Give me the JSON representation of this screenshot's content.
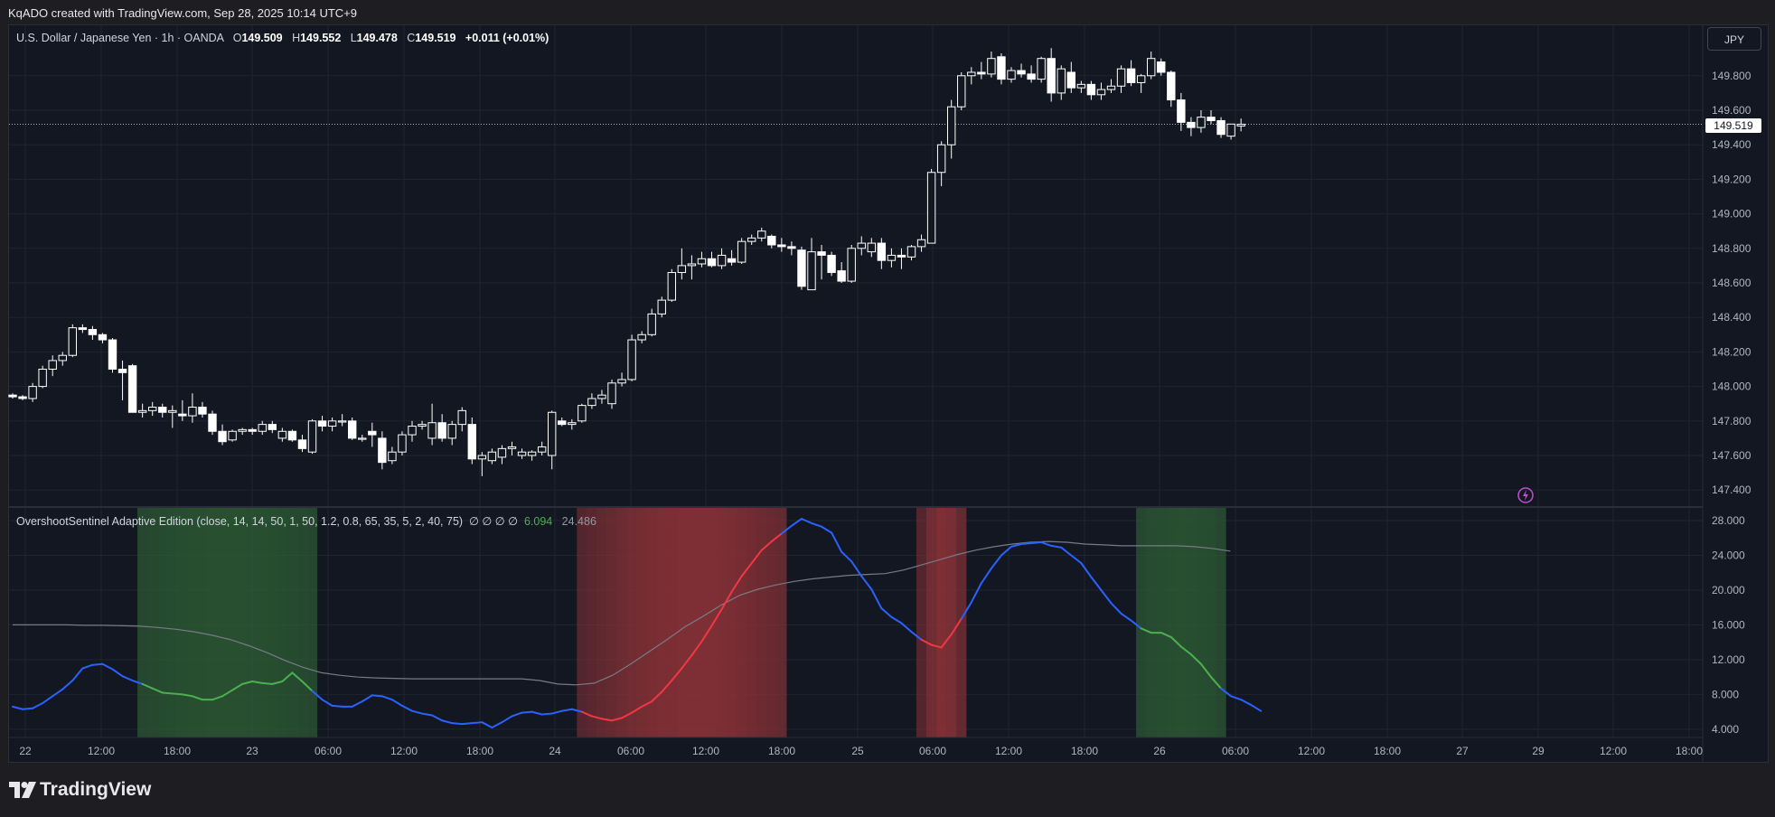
{
  "header": {
    "attribution": "KqADO created with TradingView.com, Sep 28, 2025 10:14 UTC+9"
  },
  "legend": {
    "symbol": "U.S. Dollar / Japanese Yen · 1h · OANDA",
    "o_label": "O",
    "o_value": "149.509",
    "h_label": "H",
    "h_value": "149.552",
    "l_label": "L",
    "l_value": "149.478",
    "c_label": "C",
    "c_value": "149.519",
    "change": "+0.011 (+0.01%)"
  },
  "indicator": {
    "name": "OvershootSentinel Adaptive Edition (close, 14, 14, 50, 1, 50, 1.2, 0.8, 65, 35, 5, 2, 40, 75)",
    "symbols": "∅ ∅ ∅ ∅",
    "value1": "6.094",
    "value2": "24.486"
  },
  "currency_button": "JPY",
  "last_price": "149.519",
  "footer": {
    "logo_text": "TradingView"
  },
  "colors": {
    "background": "#131722",
    "grid": "#1f2430",
    "candle": "#ffffff",
    "line_low": "#2962ff",
    "line_oversold": "#4caf50",
    "line_overbought": "#f23645",
    "signal_line": "#787b86",
    "zone_green": "#2e5e35",
    "zone_red": "#8b3237"
  },
  "chart_data": [
    {
      "type": "candlestick",
      "title": "U.S. Dollar / Japanese Yen · 1h · OANDA",
      "y_ticks": [
        "149.800",
        "149.600",
        "149.400",
        "149.200",
        "149.000",
        "148.800",
        "148.600",
        "148.400",
        "148.200",
        "148.000",
        "147.800",
        "147.600",
        "147.400"
      ],
      "ylim": [
        147.36,
        149.98
      ],
      "x_labels": [
        "22",
        "12:00",
        "18:00",
        "23",
        "06:00",
        "12:00",
        "18:00",
        "24",
        "06:00",
        "12:00",
        "18:00",
        "25",
        "06:00",
        "12:00",
        "18:00",
        "26",
        "06:00",
        "12:00",
        "18:00",
        "27",
        "29",
        "12:00",
        "18:00"
      ],
      "candles": [
        [
          147.95,
          147.96,
          147.93,
          147.94
        ],
        [
          147.94,
          147.95,
          147.92,
          147.93
        ],
        [
          147.93,
          148.02,
          147.91,
          148.0
        ],
        [
          148.0,
          148.12,
          147.99,
          148.1
        ],
        [
          148.1,
          148.18,
          148.06,
          148.15
        ],
        [
          148.15,
          148.2,
          148.12,
          148.18
        ],
        [
          148.18,
          148.36,
          148.17,
          148.34
        ],
        [
          148.34,
          148.36,
          148.31,
          148.33
        ],
        [
          148.33,
          148.35,
          148.27,
          148.3
        ],
        [
          148.3,
          148.31,
          148.25,
          148.27
        ],
        [
          148.27,
          148.28,
          148.08,
          148.1
        ],
        [
          148.1,
          148.15,
          147.92,
          148.08
        ],
        [
          148.12,
          148.13,
          147.86,
          147.85
        ],
        [
          147.85,
          147.9,
          147.82,
          147.86
        ],
        [
          147.86,
          147.91,
          147.83,
          147.88
        ],
        [
          147.88,
          147.9,
          147.82,
          147.85
        ],
        [
          147.85,
          147.89,
          147.76,
          147.86
        ],
        [
          147.84,
          147.92,
          147.8,
          147.83
        ],
        [
          147.83,
          147.96,
          147.79,
          147.88
        ],
        [
          147.88,
          147.91,
          147.82,
          147.84
        ],
        [
          147.84,
          147.86,
          147.72,
          147.74
        ],
        [
          147.74,
          147.78,
          147.66,
          147.68
        ],
        [
          147.69,
          147.75,
          147.68,
          147.74
        ],
        [
          147.74,
          147.76,
          147.72,
          147.75
        ],
        [
          147.75,
          147.76,
          147.72,
          147.74
        ],
        [
          147.74,
          147.8,
          147.72,
          147.78
        ],
        [
          147.78,
          147.8,
          147.73,
          147.75
        ],
        [
          147.7,
          147.76,
          147.68,
          147.74
        ],
        [
          147.74,
          147.75,
          147.68,
          147.69
        ],
        [
          147.69,
          147.72,
          147.62,
          147.64
        ],
        [
          147.62,
          147.81,
          147.61,
          147.8
        ],
        [
          147.8,
          147.83,
          147.74,
          147.77
        ],
        [
          147.77,
          147.82,
          147.74,
          147.8
        ],
        [
          147.8,
          147.84,
          147.77,
          147.8
        ],
        [
          147.8,
          147.82,
          147.69,
          147.7
        ],
        [
          147.7,
          147.72,
          147.68,
          147.7
        ],
        [
          147.74,
          147.79,
          147.65,
          147.72
        ],
        [
          147.7,
          147.74,
          147.52,
          147.56
        ],
        [
          147.57,
          147.65,
          147.55,
          147.62
        ],
        [
          147.62,
          147.74,
          147.6,
          147.72
        ],
        [
          147.72,
          147.8,
          147.68,
          147.77
        ],
        [
          147.77,
          147.8,
          147.75,
          147.78
        ],
        [
          147.7,
          147.9,
          147.66,
          147.79
        ],
        [
          147.79,
          147.84,
          147.68,
          147.7
        ],
        [
          147.7,
          147.8,
          147.66,
          147.78
        ],
        [
          147.78,
          147.88,
          147.74,
          147.86
        ],
        [
          147.78,
          147.82,
          147.55,
          147.58
        ],
        [
          147.58,
          147.62,
          147.48,
          147.6
        ],
        [
          147.57,
          147.64,
          147.55,
          147.62
        ],
        [
          147.59,
          147.66,
          147.55,
          147.64
        ],
        [
          147.64,
          147.68,
          147.6,
          147.65
        ],
        [
          147.6,
          147.64,
          147.58,
          147.62
        ],
        [
          147.6,
          147.63,
          147.57,
          147.62
        ],
        [
          147.62,
          147.68,
          147.6,
          147.65
        ],
        [
          147.6,
          147.86,
          147.52,
          147.85
        ],
        [
          147.8,
          147.82,
          147.77,
          147.78
        ],
        [
          147.78,
          147.81,
          147.75,
          147.79
        ],
        [
          147.8,
          147.9,
          147.79,
          147.89
        ],
        [
          147.89,
          147.96,
          147.87,
          147.93
        ],
        [
          147.93,
          147.98,
          147.9,
          147.95
        ],
        [
          147.9,
          148.04,
          147.87,
          148.02
        ],
        [
          148.02,
          148.08,
          148.0,
          148.04
        ],
        [
          148.04,
          148.3,
          148.03,
          148.27
        ],
        [
          148.27,
          148.32,
          148.25,
          148.3
        ],
        [
          148.3,
          148.45,
          148.29,
          148.42
        ],
        [
          148.42,
          148.52,
          148.4,
          148.5
        ],
        [
          148.5,
          148.68,
          148.49,
          148.66
        ],
        [
          148.66,
          148.8,
          148.62,
          148.7
        ],
        [
          148.7,
          148.76,
          148.62,
          148.71
        ],
        [
          148.71,
          148.78,
          148.69,
          148.74
        ],
        [
          148.74,
          148.78,
          148.69,
          148.7
        ],
        [
          148.7,
          148.8,
          148.68,
          148.76
        ],
        [
          148.74,
          148.79,
          148.7,
          148.72
        ],
        [
          148.72,
          148.86,
          148.71,
          148.84
        ],
        [
          148.84,
          148.88,
          148.82,
          148.86
        ],
        [
          148.86,
          148.92,
          148.84,
          148.9
        ],
        [
          148.87,
          148.88,
          148.8,
          148.82
        ],
        [
          148.82,
          148.86,
          148.78,
          148.81
        ],
        [
          148.81,
          148.84,
          148.76,
          148.8
        ],
        [
          148.79,
          148.81,
          148.56,
          148.58
        ],
        [
          148.56,
          148.86,
          148.56,
          148.78
        ],
        [
          148.78,
          148.82,
          148.62,
          148.76
        ],
        [
          148.76,
          148.78,
          148.64,
          148.66
        ],
        [
          148.67,
          148.72,
          148.6,
          148.61
        ],
        [
          148.61,
          148.82,
          148.6,
          148.8
        ],
        [
          148.8,
          148.87,
          148.76,
          148.83
        ],
        [
          148.78,
          148.86,
          148.75,
          148.83
        ],
        [
          148.83,
          148.86,
          148.68,
          148.73
        ],
        [
          148.73,
          148.8,
          148.69,
          148.76
        ],
        [
          148.76,
          148.8,
          148.68,
          148.75
        ],
        [
          148.75,
          148.82,
          148.73,
          148.81
        ],
        [
          148.81,
          148.88,
          148.78,
          148.85
        ],
        [
          148.83,
          149.26,
          148.83,
          149.24
        ],
        [
          149.24,
          149.42,
          149.16,
          149.4
        ],
        [
          149.4,
          149.66,
          149.32,
          149.62
        ],
        [
          149.62,
          149.82,
          149.6,
          149.8
        ],
        [
          149.8,
          149.85,
          149.75,
          149.82
        ],
        [
          149.82,
          149.88,
          149.78,
          149.81
        ],
        [
          149.81,
          149.94,
          149.79,
          149.9
        ],
        [
          149.91,
          149.93,
          149.75,
          149.78
        ],
        [
          149.78,
          149.85,
          149.76,
          149.83
        ],
        [
          149.83,
          149.87,
          149.79,
          149.81
        ],
        [
          149.81,
          149.86,
          149.76,
          149.78
        ],
        [
          149.78,
          149.91,
          149.76,
          149.9
        ],
        [
          149.9,
          149.96,
          149.65,
          149.7
        ],
        [
          149.7,
          149.86,
          149.66,
          149.84
        ],
        [
          149.82,
          149.88,
          149.7,
          149.73
        ],
        [
          149.73,
          149.77,
          149.7,
          149.75
        ],
        [
          149.75,
          149.77,
          149.66,
          149.69
        ],
        [
          149.69,
          149.76,
          149.66,
          149.72
        ],
        [
          149.72,
          149.78,
          149.7,
          149.74
        ],
        [
          149.74,
          149.86,
          149.7,
          149.84
        ],
        [
          149.84,
          149.89,
          149.74,
          149.76
        ],
        [
          149.76,
          149.81,
          149.7,
          149.8
        ],
        [
          149.8,
          149.94,
          149.78,
          149.9
        ],
        [
          149.88,
          149.9,
          149.8,
          149.82
        ],
        [
          149.82,
          149.83,
          149.62,
          149.66
        ],
        [
          149.66,
          149.7,
          149.48,
          149.53
        ],
        [
          149.53,
          149.56,
          149.45,
          149.5
        ],
        [
          149.5,
          149.6,
          149.47,
          149.56
        ],
        [
          149.56,
          149.6,
          149.52,
          149.54
        ],
        [
          149.54,
          149.56,
          149.44,
          149.46
        ],
        [
          149.45,
          149.52,
          149.43,
          149.52
        ],
        [
          149.509,
          149.552,
          149.478,
          149.519
        ]
      ],
      "last": 149.519
    },
    {
      "type": "line",
      "title": "OvershootSentinel Adaptive Edition",
      "y_ticks": [
        "28.000",
        "24.000",
        "20.000",
        "16.000",
        "12.000",
        "8.000",
        "4.000"
      ],
      "ylim": [
        2.5,
        29.5
      ],
      "oscillator": [
        6.6,
        6.3,
        6.4,
        7.0,
        7.8,
        8.6,
        9.6,
        11.0,
        11.4,
        11.5,
        10.9,
        10.1,
        9.6,
        9.2,
        8.7,
        8.2,
        8.1,
        8.0,
        7.8,
        7.4,
        7.4,
        7.8,
        8.5,
        9.2,
        9.5,
        9.3,
        9.2,
        9.5,
        10.5,
        9.5,
        8.4,
        7.4,
        6.7,
        6.6,
        6.6,
        7.2,
        7.9,
        7.8,
        7.4,
        6.7,
        6.1,
        5.8,
        5.6,
        5.0,
        4.7,
        4.6,
        4.7,
        4.8,
        4.2,
        4.8,
        5.5,
        5.9,
        6.0,
        5.7,
        5.8,
        6.1,
        6.3,
        6.0,
        5.5,
        5.2,
        5.0,
        5.3,
        5.9,
        6.6,
        7.2,
        8.3,
        9.6,
        11.0,
        12.5,
        14.1,
        15.9,
        17.8,
        19.8,
        21.6,
        23.1,
        24.6,
        25.6,
        26.5,
        27.4,
        28.2,
        27.7,
        27.3,
        26.6,
        24.4,
        23.3,
        21.6,
        20.1,
        17.9,
        16.9,
        16.2,
        15.2,
        14.3,
        13.7,
        13.4,
        14.9,
        16.7,
        18.6,
        20.8,
        22.5,
        24.0,
        25.0,
        25.3,
        25.4,
        25.5,
        25.1,
        24.9,
        24.0,
        23.1,
        21.5,
        20.0,
        18.5,
        17.3,
        16.5,
        15.6,
        15.1,
        15.1,
        14.6,
        13.5,
        12.6,
        11.5,
        10.0,
        8.7,
        7.8,
        7.4,
        6.8,
        6.1
      ],
      "zones": [
        {
          "type": "oversold",
          "from": 13,
          "to": 30
        },
        {
          "type": "overbought",
          "from": 57,
          "to": 77
        },
        {
          "type": "overbought",
          "from": 91,
          "to": 95
        },
        {
          "type": "oversold",
          "from": 113,
          "to": 121
        }
      ],
      "signal": [
        16.0,
        16.0,
        16.0,
        16.0,
        15.95,
        15.95,
        15.9,
        15.85,
        15.7,
        15.5,
        15.2,
        14.8,
        14.3,
        13.6,
        12.8,
        11.9,
        11.1,
        10.5,
        10.2,
        10.0,
        9.9,
        9.85,
        9.8,
        9.8,
        9.8,
        9.8,
        9.8,
        9.8,
        9.8,
        9.6,
        9.2,
        9.1,
        9.3,
        10.2,
        11.5,
        12.9,
        14.3,
        15.8,
        17.0,
        18.3,
        19.4,
        20.1,
        20.6,
        21.0,
        21.3,
        21.5,
        21.7,
        21.8,
        21.9,
        22.3,
        22.9,
        23.5,
        24.1,
        24.6,
        25.0,
        25.3,
        25.5,
        25.6,
        25.5,
        25.3,
        25.2,
        25.1,
        25.1,
        25.1,
        25.1,
        25.0,
        24.8,
        24.49
      ]
    }
  ]
}
